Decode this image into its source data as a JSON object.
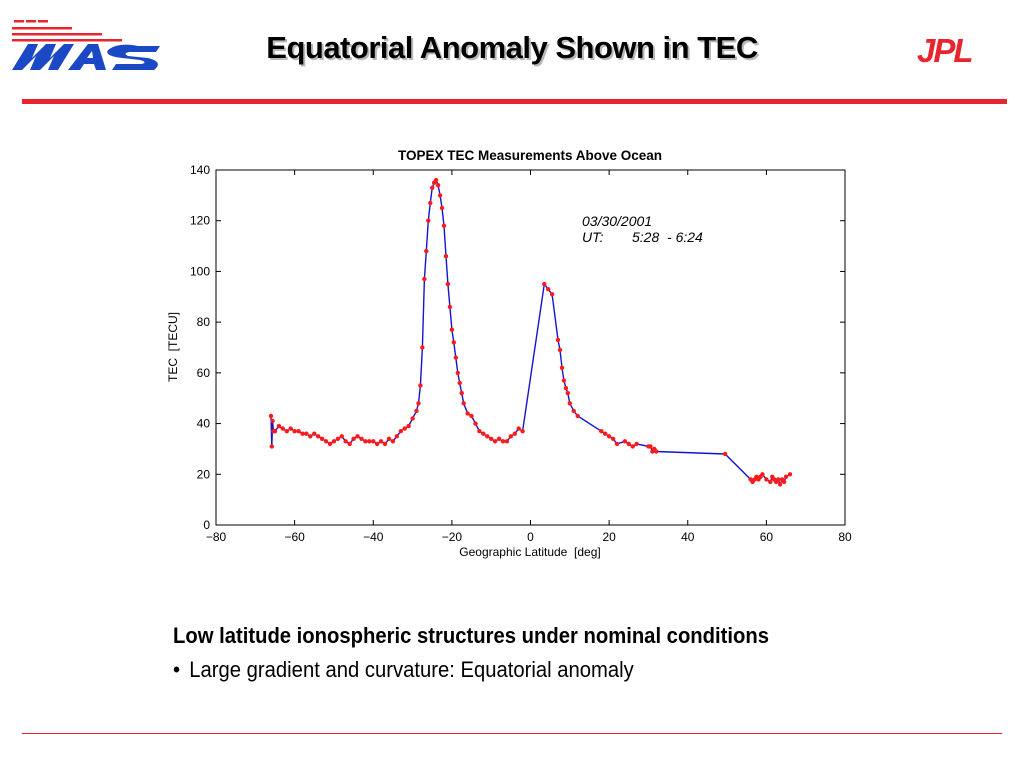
{
  "slide": {
    "title": "Equatorial Anomaly Shown in TEC",
    "left_logo": "waas-logo",
    "right_logo": "JPL",
    "accent_color": "#e8242f",
    "caption_heading": "Low latitude ionospheric structures under nominal conditions",
    "caption_bullet": "•",
    "caption_text": "Large gradient and curvature: Equatorial anomaly"
  },
  "chart_data": {
    "type": "line",
    "title": "TOPEX TEC Measurements Above Ocean",
    "xlabel": "Geographic Latitude  [deg]",
    "ylabel": "TEC  [TECU]",
    "xlim": [
      -80,
      80
    ],
    "ylim": [
      0,
      140
    ],
    "xticks": [
      -80,
      -60,
      -40,
      -20,
      0,
      20,
      40,
      60,
      80
    ],
    "yticks": [
      0,
      20,
      40,
      60,
      80,
      100,
      120,
      140
    ],
    "grid": false,
    "annotation_date": "03/30/2001",
    "annotation_ut_label": "UT:",
    "annotation_ut_range": "5:28  - 6:24",
    "line_color": "#1414d0",
    "marker_color": "#ff1a1a",
    "series": [
      {
        "x": [
          -66,
          -65.8,
          -65.6,
          -65.4,
          -65,
          -64,
          -63,
          -62,
          -61,
          -60,
          -59,
          -58,
          -57,
          -56,
          -55,
          -54,
          -53,
          -52,
          -51,
          -50,
          -49,
          -48,
          -47,
          -46,
          -45,
          -44,
          -43,
          -42,
          -41,
          -40,
          -39,
          -38,
          -37,
          -36,
          -35,
          -34,
          -33,
          -32,
          -31,
          -30,
          -29,
          -28.5,
          -28,
          -27.5,
          -27,
          -26.5,
          -26,
          -25.5,
          -25,
          -24.5,
          -24,
          -23.5,
          -23,
          -22.5,
          -22,
          -21.5,
          -21,
          -20.5,
          -20,
          -19.5,
          -19,
          -18.5,
          -18,
          -17.5,
          -17,
          -16,
          -15,
          -14,
          -13,
          -12,
          -11,
          -10,
          -9,
          -8,
          -7,
          -6,
          -5,
          -4,
          -3,
          -2,
          3.5,
          4.5,
          5.5,
          7,
          7.5,
          8,
          8.5,
          9,
          9.5,
          10,
          11,
          12,
          18,
          19,
          20,
          21,
          22,
          24,
          25,
          26,
          27,
          30,
          30.5,
          31,
          31.5,
          32,
          49.5,
          56,
          56.5,
          57,
          57.5,
          58,
          58.5,
          59,
          60,
          61,
          61.5,
          62,
          62.5,
          63,
          63.5,
          64,
          64.5,
          65,
          66
        ],
        "y": [
          43,
          31,
          41,
          37,
          37,
          39,
          38,
          37,
          38,
          37,
          37,
          36,
          36,
          35,
          36,
          35,
          34,
          33,
          32,
          33,
          34,
          35,
          33,
          32,
          34,
          35,
          34,
          33,
          33,
          33,
          32,
          33,
          32,
          34,
          33,
          35,
          37,
          38,
          39,
          42,
          45,
          48,
          55,
          70,
          97,
          108,
          120,
          127,
          133,
          135,
          136,
          134,
          130,
          125,
          118,
          106,
          95,
          86,
          77,
          72,
          66,
          60,
          56,
          52,
          48,
          44,
          43,
          40,
          37,
          36,
          35,
          34,
          33,
          34,
          33,
          33,
          35,
          36,
          38,
          37,
          95,
          93,
          91,
          73,
          69,
          62,
          57,
          54,
          52,
          48,
          45,
          43,
          37,
          36,
          35,
          34,
          32,
          33,
          32,
          31,
          32,
          31,
          31,
          29,
          30,
          29,
          28,
          18,
          17,
          18,
          19,
          18,
          19,
          20,
          18,
          17,
          19,
          18,
          17,
          18,
          16,
          18,
          17,
          19,
          20
        ]
      }
    ]
  }
}
